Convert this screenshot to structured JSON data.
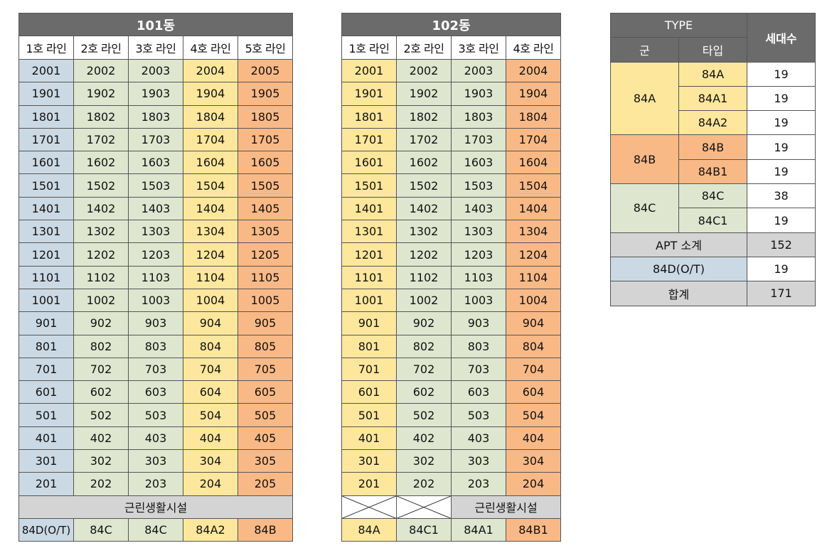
{
  "b101": {
    "title": "101동",
    "lines": [
      "1호 라인",
      "2호 라인",
      "3호 라인",
      "4호 라인",
      "5호 라인"
    ],
    "col_colors": [
      "#cbd9e4",
      "#dee6cf",
      "#dee6cf",
      "#fde79c",
      "#f9b986"
    ],
    "rows": [
      [
        "2001",
        "2002",
        "2003",
        "2004",
        "2005"
      ],
      [
        "1901",
        "1902",
        "1903",
        "1904",
        "1905"
      ],
      [
        "1801",
        "1802",
        "1803",
        "1804",
        "1805"
      ],
      [
        "1701",
        "1702",
        "1703",
        "1704",
        "1705"
      ],
      [
        "1601",
        "1602",
        "1603",
        "1604",
        "1605"
      ],
      [
        "1501",
        "1502",
        "1503",
        "1504",
        "1505"
      ],
      [
        "1401",
        "1402",
        "1403",
        "1404",
        "1405"
      ],
      [
        "1301",
        "1302",
        "1303",
        "1304",
        "1305"
      ],
      [
        "1201",
        "1202",
        "1203",
        "1204",
        "1205"
      ],
      [
        "1101",
        "1102",
        "1103",
        "1104",
        "1105"
      ],
      [
        "1001",
        "1002",
        "1003",
        "1004",
        "1005"
      ],
      [
        "901",
        "902",
        "903",
        "904",
        "905"
      ],
      [
        "801",
        "802",
        "803",
        "804",
        "805"
      ],
      [
        "701",
        "702",
        "703",
        "704",
        "705"
      ],
      [
        "601",
        "602",
        "603",
        "604",
        "605"
      ],
      [
        "501",
        "502",
        "503",
        "504",
        "505"
      ],
      [
        "401",
        "402",
        "403",
        "404",
        "405"
      ],
      [
        "301",
        "302",
        "303",
        "304",
        "305"
      ],
      [
        "201",
        "202",
        "203",
        "204",
        "205"
      ]
    ],
    "facility": "근린생활시설",
    "types": [
      "84D(O/T)",
      "84C",
      "84C",
      "84A2",
      "84B"
    ]
  },
  "b102": {
    "title": "102동",
    "lines": [
      "1호 라인",
      "2호 라인",
      "3호 라인",
      "4호 라인"
    ],
    "col_colors": [
      "#fde79c",
      "#dee6cf",
      "#dee6cf",
      "#f9b986"
    ],
    "rows": [
      [
        "2001",
        "2002",
        "2003",
        "2004"
      ],
      [
        "1901",
        "1902",
        "1903",
        "1904"
      ],
      [
        "1801",
        "1802",
        "1803",
        "1804"
      ],
      [
        "1701",
        "1702",
        "1703",
        "1704"
      ],
      [
        "1601",
        "1602",
        "1603",
        "1604"
      ],
      [
        "1501",
        "1502",
        "1503",
        "1504"
      ],
      [
        "1401",
        "1402",
        "1403",
        "1404"
      ],
      [
        "1301",
        "1302",
        "1303",
        "1304"
      ],
      [
        "1201",
        "1202",
        "1203",
        "1204"
      ],
      [
        "1101",
        "1102",
        "1103",
        "1104"
      ],
      [
        "1001",
        "1002",
        "1003",
        "1004"
      ],
      [
        "901",
        "902",
        "903",
        "904"
      ],
      [
        "801",
        "802",
        "803",
        "804"
      ],
      [
        "701",
        "702",
        "703",
        "704"
      ],
      [
        "601",
        "602",
        "603",
        "604"
      ],
      [
        "501",
        "502",
        "503",
        "504"
      ],
      [
        "401",
        "402",
        "403",
        "404"
      ],
      [
        "301",
        "302",
        "303",
        "304"
      ],
      [
        "201",
        "202",
        "203",
        "204"
      ]
    ],
    "facility": "근린생활시설",
    "types": [
      "84A",
      "84C1",
      "84A1",
      "84B1"
    ]
  },
  "type_table": {
    "header_type": "TYPE",
    "header_units": "세대수",
    "header_group": "군",
    "header_subtype": "타입",
    "groups": [
      {
        "name": "84A",
        "color": "#fde79c",
        "items": [
          {
            "type": "84A",
            "units": "19"
          },
          {
            "type": "84A1",
            "units": "19"
          },
          {
            "type": "84A2",
            "units": "19"
          }
        ]
      },
      {
        "name": "84B",
        "color": "#f9b986",
        "items": [
          {
            "type": "84B",
            "units": "19"
          },
          {
            "type": "84B1",
            "units": "19"
          }
        ]
      },
      {
        "name": "84C",
        "color": "#dee6cf",
        "items": [
          {
            "type": "84C",
            "units": "38"
          },
          {
            "type": "84C1",
            "units": "19"
          }
        ]
      }
    ],
    "apt_subtotal_label": "APT 소계",
    "apt_subtotal_value": "152",
    "ot_label": "84D(O/T)",
    "ot_value": "19",
    "total_label": "합계",
    "total_value": "171"
  }
}
